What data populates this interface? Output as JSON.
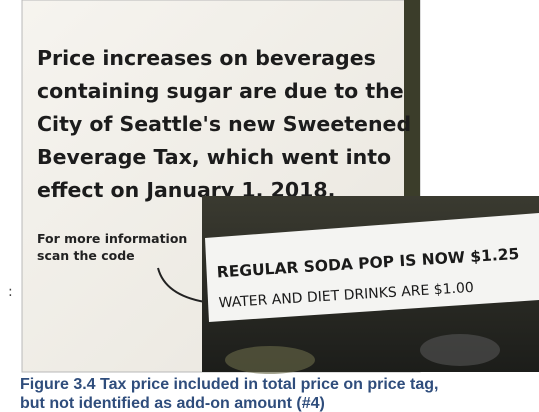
{
  "sign": {
    "lines": [
      "Price increases on beverages",
      "containing sugar are due to the",
      "City of Seattle's new Sweetened",
      "Beverage Tax, which went into",
      "effect on January 1, 2018."
    ],
    "footnote": [
      "For more information",
      "scan the code"
    ]
  },
  "label": {
    "line1": "REGULAR SODA POP IS NOW $1.25",
    "line2": "WATER AND DIET DRINKS ARE $1.00"
  },
  "margin_mark": ":",
  "caption": [
    "Figure 3.4 Tax price included in total price on price tag,",
    "but not identified as add-on amount (#4)"
  ]
}
